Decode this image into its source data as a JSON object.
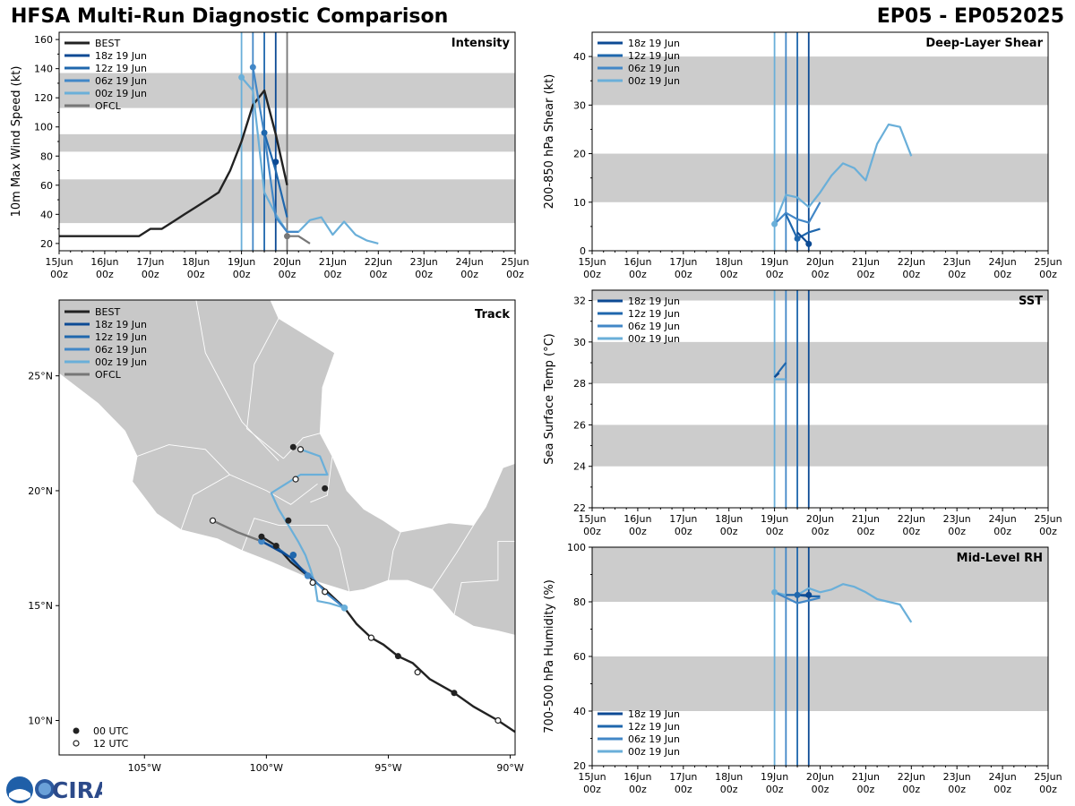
{
  "header": {
    "title_left": "HFSA Multi-Run Diagnostic Comparison",
    "title_right": "EP05 - EP052025"
  },
  "logo": {
    "text": "CIRA",
    "badge": "noaa-logo"
  },
  "colors": {
    "BEST": "#222222",
    "18z 19 Jun": "#0c4a94",
    "12z 19 Jun": "#1f67ad",
    "06z 19 Jun": "#4287c7",
    "00z 19 Jun": "#6aafd9",
    "OFCL": "#777777",
    "band": "#cccccc",
    "land": "#c8c8c8"
  },
  "time_axis": {
    "ticks": [
      "15Jun\n00z",
      "16Jun\n00z",
      "17Jun\n00z",
      "18Jun\n00z",
      "19Jun\n00z",
      "20Jun\n00z",
      "21Jun\n00z",
      "22Jun\n00z",
      "23Jun\n00z",
      "24Jun\n00z",
      "25Jun\n00z"
    ],
    "range_days": [
      0,
      10
    ],
    "run_init_days": [
      4.0,
      4.25,
      4.5,
      4.75
    ]
  },
  "chart_data": [
    {
      "id": "intensity",
      "type": "line",
      "title": "Intensity",
      "ylabel": "10m Max Wind Speed (kt)",
      "ylim": [
        15,
        165
      ],
      "yticks": [
        20,
        40,
        60,
        80,
        100,
        120,
        140,
        160
      ],
      "bands": [
        [
          34,
          64
        ],
        [
          83,
          95
        ],
        [
          113,
          137
        ]
      ],
      "vlines": [
        {
          "x": 4.0,
          "color": "00z 19 Jun"
        },
        {
          "x": 4.25,
          "color": "06z 19 Jun"
        },
        {
          "x": 4.5,
          "color": "12z 19 Jun"
        },
        {
          "x": 4.75,
          "color": "18z 19 Jun"
        },
        {
          "x": 5.0,
          "color": "OFCL"
        }
      ],
      "legend": [
        "BEST",
        "18z 19 Jun",
        "12z 19 Jun",
        "06z 19 Jun",
        "00z 19 Jun",
        "OFCL"
      ],
      "series": [
        {
          "name": "BEST",
          "x": [
            0,
            1.5,
            1.75,
            2.0,
            2.25,
            2.5,
            2.75,
            3.0,
            3.25,
            3.5,
            3.75,
            4.0,
            4.25,
            4.5,
            4.75,
            5.0
          ],
          "y": [
            25,
            25,
            25,
            30,
            30,
            35,
            40,
            45,
            50,
            55,
            70,
            90,
            115,
            125,
            95,
            60
          ]
        },
        {
          "name": "OFCL",
          "x": [
            5.0,
            5.25,
            5.5
          ],
          "y": [
            25,
            25,
            20
          ]
        },
        {
          "name": "00z 19 Jun",
          "x": [
            4.0,
            4.25,
            4.5,
            4.75,
            5.0,
            5.25,
            5.5,
            5.75,
            6.0,
            6.25,
            6.5,
            6.75,
            7.0
          ],
          "y": [
            134,
            125,
            55,
            40,
            28,
            28,
            36,
            38,
            26,
            35,
            26,
            22,
            20
          ]
        },
        {
          "name": "06z 19 Jun",
          "x": [
            4.25,
            4.5,
            4.75,
            5.0,
            5.25
          ],
          "y": [
            141,
            95,
            38,
            28,
            28
          ]
        },
        {
          "name": "12z 19 Jun",
          "x": [
            4.5,
            4.75,
            5.0
          ],
          "y": [
            96,
            70,
            38
          ]
        },
        {
          "name": "18z 19 Jun",
          "x": [
            4.75
          ],
          "y": [
            76
          ]
        }
      ]
    },
    {
      "id": "shear",
      "type": "line",
      "title": "Deep-Layer Shear",
      "ylabel": "200-850 hPa Shear (kt)",
      "ylim": [
        0,
        45
      ],
      "yticks": [
        0,
        10,
        20,
        30,
        40
      ],
      "bands": [
        [
          10,
          20
        ],
        [
          30,
          40
        ]
      ],
      "vlines": [
        {
          "x": 4.0,
          "color": "00z 19 Jun"
        },
        {
          "x": 4.25,
          "color": "06z 19 Jun"
        },
        {
          "x": 4.5,
          "color": "12z 19 Jun"
        },
        {
          "x": 4.75,
          "color": "18z 19 Jun"
        }
      ],
      "legend": [
        "18z 19 Jun",
        "12z 19 Jun",
        "06z 19 Jun",
        "00z 19 Jun"
      ],
      "series": [
        {
          "name": "00z 19 Jun",
          "x": [
            4.0,
            4.25,
            4.5,
            4.75,
            5.0,
            5.25,
            5.5,
            5.75,
            6.0,
            6.25,
            6.5,
            6.75,
            7.0
          ],
          "y": [
            5.5,
            11.5,
            11,
            9,
            12,
            15.5,
            18,
            17,
            14.5,
            22,
            26,
            25.5,
            19.5
          ]
        },
        {
          "name": "06z 19 Jun",
          "x": [
            4.0,
            4.25,
            4.5,
            4.75,
            5.0
          ],
          "y": [
            5.5,
            7.8,
            6.5,
            5.8,
            10
          ]
        },
        {
          "name": "12z 19 Jun",
          "x": [
            4.25,
            4.5,
            4.75,
            5.0
          ],
          "y": [
            7.5,
            2.5,
            3.8,
            4.5
          ]
        },
        {
          "name": "18z 19 Jun",
          "x": [
            4.5,
            4.75
          ],
          "y": [
            3.8,
            1.4
          ]
        }
      ],
      "markers": [
        {
          "name": "00z 19 Jun",
          "x": 4.0,
          "y": 5.5
        },
        {
          "name": "12z 19 Jun",
          "x": 4.5,
          "y": 2.5
        },
        {
          "name": "18z 19 Jun",
          "x": 4.75,
          "y": 1.4
        }
      ]
    },
    {
      "id": "sst",
      "type": "line",
      "title": "SST",
      "ylabel": "Sea Surface Temp (°C)",
      "ylim": [
        22,
        32.5
      ],
      "yticks": [
        22,
        24,
        26,
        28,
        30,
        32
      ],
      "bands": [
        [
          24,
          26
        ],
        [
          28,
          30
        ],
        [
          32,
          33
        ]
      ],
      "vlines": [
        {
          "x": 4.0,
          "color": "00z 19 Jun"
        },
        {
          "x": 4.25,
          "color": "06z 19 Jun"
        },
        {
          "x": 4.5,
          "color": "12z 19 Jun"
        },
        {
          "x": 4.75,
          "color": "18z 19 Jun"
        }
      ],
      "legend": [
        "18z 19 Jun",
        "12z 19 Jun",
        "06z 19 Jun",
        "00z 19 Jun"
      ],
      "series": [
        {
          "name": "00z 19 Jun",
          "x": [
            4.0,
            4.25
          ],
          "y": [
            28.2,
            28.2
          ]
        },
        {
          "name": "12z 19 Jun",
          "x": [
            4.0,
            4.25
          ],
          "y": [
            28.3,
            29.0
          ]
        },
        {
          "name": "18z 19 Jun",
          "x": [
            4.0,
            4.1
          ],
          "y": [
            28.3,
            28.5
          ]
        }
      ]
    },
    {
      "id": "rh",
      "type": "line",
      "title": "Mid-Level RH",
      "ylabel": "700-500 hPa Humidity (%)",
      "ylim": [
        20,
        100
      ],
      "yticks": [
        20,
        40,
        60,
        80,
        100
      ],
      "bands": [
        [
          40,
          60
        ],
        [
          80,
          100
        ]
      ],
      "vlines": [
        {
          "x": 4.0,
          "color": "00z 19 Jun"
        },
        {
          "x": 4.25,
          "color": "06z 19 Jun"
        },
        {
          "x": 4.5,
          "color": "12z 19 Jun"
        },
        {
          "x": 4.75,
          "color": "18z 19 Jun"
        }
      ],
      "legend": [
        "18z 19 Jun",
        "12z 19 Jun",
        "06z 19 Jun",
        "00z 19 Jun"
      ],
      "series": [
        {
          "name": "00z 19 Jun",
          "x": [
            4.0,
            4.25,
            4.5,
            4.75,
            5.0,
            5.25,
            5.5,
            5.75,
            6.0,
            6.25,
            6.5,
            6.75,
            7.0
          ],
          "y": [
            83.5,
            82.5,
            82.5,
            85,
            83.5,
            84.5,
            86.5,
            85.5,
            83.5,
            81,
            80,
            79,
            72.5
          ]
        },
        {
          "name": "06z 19 Jun",
          "x": [
            4.0,
            4.25,
            4.5,
            4.75,
            5.0
          ],
          "y": [
            83.5,
            81.5,
            79.5,
            80.5,
            81.5
          ]
        },
        {
          "name": "12z 19 Jun",
          "x": [
            4.25,
            4.5,
            4.75,
            5.0
          ],
          "y": [
            82.5,
            82.5,
            82,
            82
          ]
        },
        {
          "name": "18z 19 Jun",
          "x": [
            4.5,
            4.75
          ],
          "y": [
            82.5,
            82.5
          ]
        }
      ],
      "markers": [
        {
          "name": "00z 19 Jun",
          "x": 4.0,
          "y": 83.5
        },
        {
          "name": "12z 19 Jun",
          "x": 4.5,
          "y": 82.5
        },
        {
          "name": "18z 19 Jun",
          "x": 4.75,
          "y": 82.5
        }
      ]
    },
    {
      "id": "track",
      "type": "map",
      "title": "Track",
      "lon_range": [
        -108.5,
        -89.8
      ],
      "lat_range": [
        8.5,
        28.3
      ],
      "x_ticks": [
        {
          "lon": -105,
          "label": "105°W"
        },
        {
          "lon": -100,
          "label": "100°W"
        },
        {
          "lon": -95,
          "label": "95°W"
        },
        {
          "lon": -90,
          "label": "90°W"
        }
      ],
      "y_ticks": [
        {
          "lat": 10,
          "label": "10°N"
        },
        {
          "lat": 15,
          "label": "15°N"
        },
        {
          "lat": 20,
          "label": "20°N"
        },
        {
          "lat": 25,
          "label": "25°N"
        }
      ],
      "legend": [
        "BEST",
        "18z 19 Jun",
        "12z 19 Jun",
        "06z 19 Jun",
        "00z 19 Jun",
        "OFCL"
      ],
      "marker_legend": [
        "00 UTC",
        "12 UTC"
      ],
      "best_track": {
        "lon": [
          -89.8,
          -90.5,
          -91.5,
          -92.3,
          -93.3,
          -94.0,
          -94.6,
          -95.2,
          -95.7,
          -96.3,
          -96.8,
          -97.5,
          -98.3,
          -99.0,
          -99.6,
          -100.2
        ],
        "lat": [
          9.5,
          10.0,
          10.6,
          11.2,
          11.8,
          12.5,
          12.8,
          13.3,
          13.6,
          14.2,
          14.9,
          15.6,
          16.3,
          16.9,
          17.6,
          18.0
        ]
      },
      "best_pts_00": [
        {
          "lon": -92.3,
          "lat": 11.2
        },
        {
          "lon": -94.6,
          "lat": 12.8
        },
        {
          "lon": -99.6,
          "lat": 17.6
        },
        {
          "lon": -100.2,
          "lat": 18.0
        },
        {
          "lon": -99.1,
          "lat": 18.7
        },
        {
          "lon": -97.6,
          "lat": 20.1
        },
        {
          "lon": -98.9,
          "lat": 21.9
        }
      ],
      "best_pts_12": [
        {
          "lon": -90.5,
          "lat": 10.0
        },
        {
          "lon": -93.8,
          "lat": 12.1
        },
        {
          "lon": -95.7,
          "lat": 13.6
        },
        {
          "lon": -97.6,
          "lat": 15.6
        },
        {
          "lon": -98.1,
          "lat": 16.0
        },
        {
          "lon": -102.2,
          "lat": 18.7
        },
        {
          "lon": -98.8,
          "lat": 20.5
        },
        {
          "lon": -98.6,
          "lat": 21.8
        }
      ],
      "ofcl": {
        "lon": [
          -102.2,
          -101.2,
          -100.2
        ],
        "lat": [
          18.7,
          18.2,
          17.8
        ]
      },
      "runs": [
        {
          "name": "00z 19 Jun",
          "lon": [
            -96.8,
            -97.4,
            -97.9,
            -98.0,
            -98.2,
            -98.4,
            -98.7,
            -99.1,
            -99.5,
            -99.8,
            -99.2,
            -98.6,
            -97.5,
            -97.8,
            -98.6
          ],
          "lat": [
            14.9,
            15.1,
            15.2,
            15.9,
            16.6,
            17.2,
            17.8,
            18.5,
            19.2,
            19.9,
            20.3,
            20.7,
            20.7,
            21.5,
            21.8
          ]
        },
        {
          "name": "06z 19 Jun",
          "lon": [
            -96.8,
            -97.5,
            -98.2,
            -99.0
          ],
          "lat": [
            14.9,
            15.5,
            16.3,
            17.0
          ]
        },
        {
          "name": "12z 19 Jun",
          "lon": [
            -98.3,
            -98.9,
            -99.4,
            -100.2
          ],
          "lat": [
            16.3,
            17.0,
            17.4,
            17.8
          ]
        },
        {
          "name": "18z 19 Jun",
          "lon": [
            -98.4,
            -99.0,
            -100.2
          ],
          "lat": [
            16.4,
            17.1,
            17.8
          ]
        }
      ],
      "run_markers": [
        {
          "name": "00z 19 Jun",
          "lon": -96.8,
          "lat": 14.9
        },
        {
          "name": "06z 19 Jun",
          "lon": -98.3,
          "lat": 16.3
        },
        {
          "name": "12z 19 Jun",
          "lon": -98.9,
          "lat": 17.2
        },
        {
          "name": "06z 19 Jun",
          "lon": -100.2,
          "lat": 17.8
        }
      ]
    }
  ]
}
